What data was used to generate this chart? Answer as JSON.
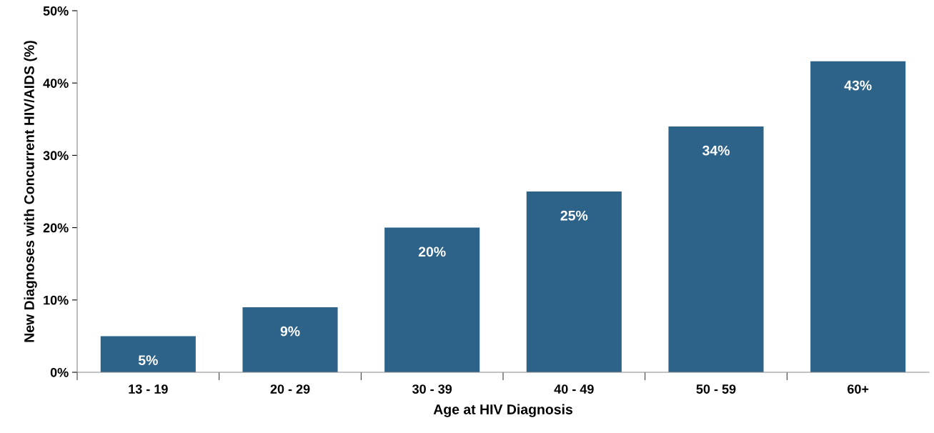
{
  "chart_data": {
    "type": "bar",
    "xlabel": "Age at HIV Diagnosis",
    "ylabel": "New Diagnoses with Concurrent HIV/AIDS (%)",
    "categories": [
      "13 - 19",
      "20 - 29",
      "30 - 39",
      "40 - 49",
      "50 - 59",
      "60+"
    ],
    "values": [
      5,
      9,
      20,
      25,
      34,
      43
    ],
    "value_labels": [
      "5%",
      "9%",
      "20%",
      "25%",
      "34%",
      "43%"
    ],
    "color": "#2e6389",
    "ylim": [
      0,
      50
    ],
    "yticks": [
      {
        "value": 0,
        "label": "0%"
      },
      {
        "value": 10,
        "label": "10%"
      },
      {
        "value": 20,
        "label": "20%"
      },
      {
        "value": 30,
        "label": "30%"
      },
      {
        "value": 40,
        "label": "40%"
      },
      {
        "value": 50,
        "label": "50%"
      }
    ],
    "grid": false,
    "legend": false
  }
}
